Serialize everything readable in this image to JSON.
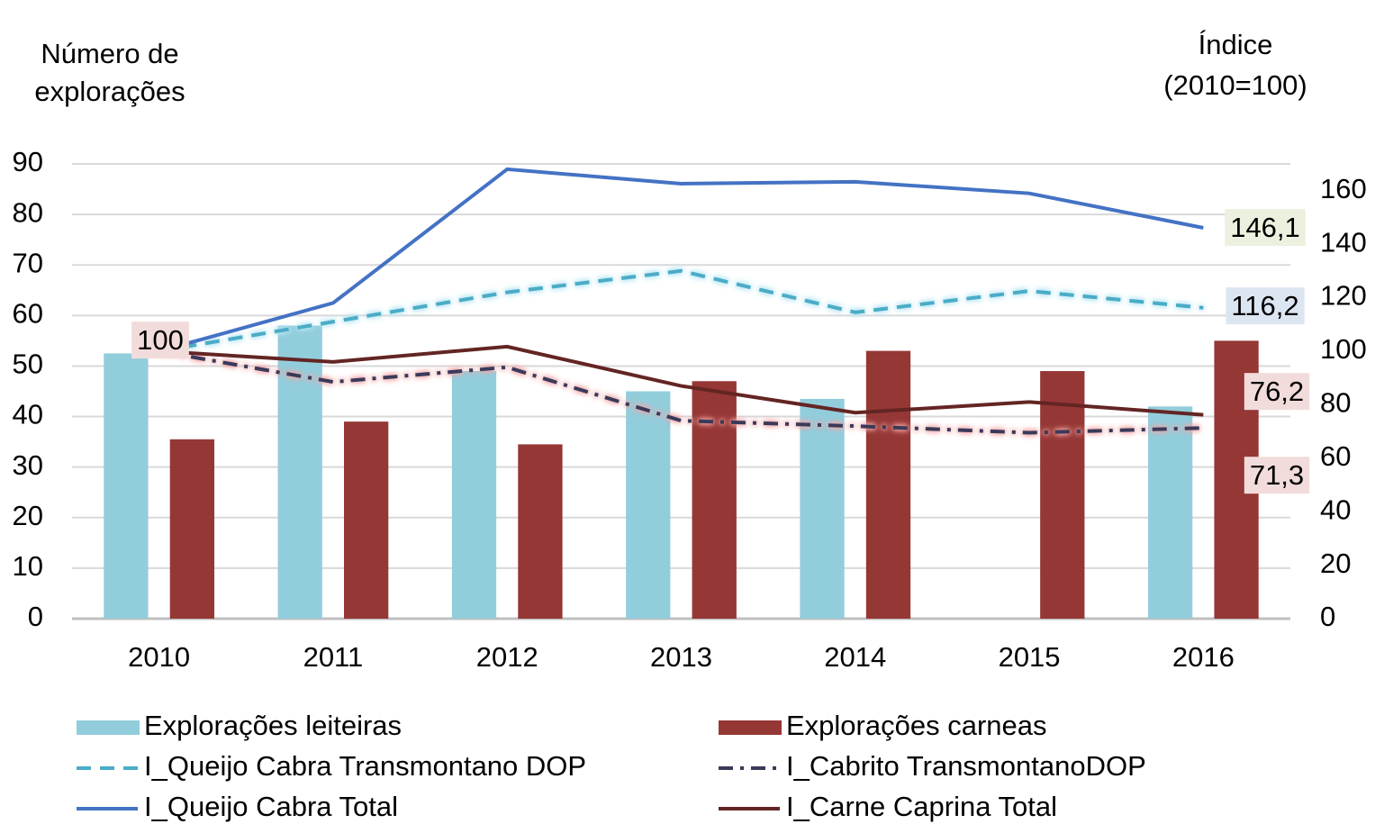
{
  "chart_data": {
    "type": "bar",
    "y_label": [
      "Número de",
      "explorações"
    ],
    "y2_label": [
      "Índice",
      "(2010=100)"
    ],
    "categories": [
      "2010",
      "2011",
      "2012",
      "2013",
      "2014",
      "2015",
      "2016"
    ],
    "ylim": [
      0,
      90
    ],
    "yticks": [
      0,
      10,
      20,
      30,
      40,
      50,
      60,
      70,
      80,
      90
    ],
    "y2lim": [
      0,
      170
    ],
    "y2ticks": [
      0,
      20,
      40,
      60,
      80,
      100,
      120,
      140,
      160
    ],
    "grid": true,
    "series": [
      {
        "name": "Explorações leiteiras",
        "type": "bar",
        "color": "#92cddc",
        "values": [
          52.5,
          58,
          49,
          45,
          43.5,
          null,
          42
        ]
      },
      {
        "name": "Explorações carneas",
        "type": "bar",
        "color": "#953735",
        "values": [
          35.5,
          39,
          34.5,
          47,
          53,
          49,
          55
        ]
      },
      {
        "name": "I_Queijo Cabra Transmontano DOP",
        "type": "line",
        "axis": "y2",
        "color": "#4bacc6",
        "dash": "dashed",
        "glow": "#b7e6f5",
        "values": [
          100,
          111,
          122,
          130,
          114.5,
          122.5,
          116.2
        ],
        "value_labels": [
          null,
          null,
          null,
          null,
          null,
          null,
          "116,2"
        ],
        "label_bg": "#dce6f2"
      },
      {
        "name": "I_Cabrito TransmontanoDOP",
        "type": "line",
        "axis": "y2",
        "color": "#3a3a5a",
        "dash": "dashdot",
        "glow": "#f4a6a6",
        "values": [
          100,
          88.5,
          94,
          74,
          72,
          69.5,
          71.3
        ],
        "value_labels": [
          null,
          null,
          null,
          null,
          null,
          null,
          "71,3"
        ],
        "label_bg": "#f2dcdb"
      },
      {
        "name": "I_Queijo Cabra Total",
        "type": "line",
        "axis": "y2",
        "color": "#4472c4",
        "dash": "solid",
        "values": [
          100,
          118,
          168,
          162.6,
          163.3,
          159,
          146.1
        ],
        "value_labels": [
          null,
          null,
          null,
          null,
          null,
          null,
          "146,1"
        ],
        "label_bg": "#ebf1de"
      },
      {
        "name": "I_Carne Caprina Total",
        "type": "line",
        "axis": "y2",
        "color": "#632523",
        "dash": "solid",
        "values": [
          100,
          96,
          101.7,
          87,
          77,
          81,
          76.2
        ],
        "value_labels": [
          "100",
          null,
          null,
          null,
          null,
          null,
          "76,2"
        ],
        "label_bg": "#f2dcdb"
      }
    ]
  }
}
